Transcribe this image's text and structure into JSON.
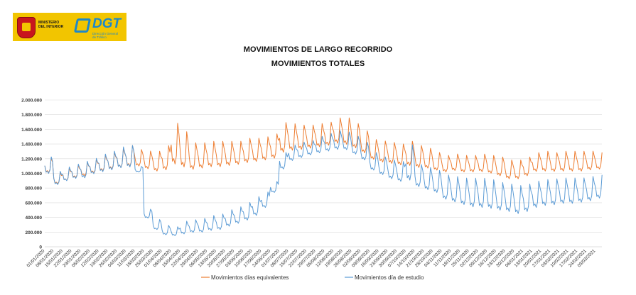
{
  "header": {
    "ministry_text": "MINISTERIO\nDEL INTERIOR",
    "dgt_text": "DGT",
    "dgt_sub": "Dirección General\nde Tráfico"
  },
  "colors": {
    "accent_yellow": "#F2C500",
    "series_equivalentes": "#ED7D31",
    "series_estudio": "#5B9BD5"
  },
  "chart_data": {
    "type": "line",
    "title": "MOVIMIENTOS DE LARGO RECORRIDO",
    "subtitle": "MOVIMIENTOS TOTALES",
    "ylim": [
      0,
      2000000
    ],
    "yticks": [
      0,
      200000,
      400000,
      600000,
      800000,
      1000000,
      1200000,
      1400000,
      1600000,
      1800000,
      2000000
    ],
    "ytick_labels": [
      "0",
      "200.000",
      "400.000",
      "600.000",
      "800.000",
      "1.000.000",
      "1.200.000",
      "1.400.000",
      "1.600.000",
      "1.800.000",
      "2.000.000"
    ],
    "grid": "horizontal",
    "legend": "bottom",
    "x_labels": [
      "01/01/2020",
      "08/01/2020",
      "15/01/2020",
      "22/01/2020",
      "29/01/2020",
      "05/02/2020",
      "12/02/2020",
      "19/02/2020",
      "26/02/2020",
      "04/03/2020",
      "11/03/2020",
      "18/03/2020",
      "25/03/2020",
      "01/04/2020",
      "08/04/2020",
      "15/04/2020",
      "22/04/2020",
      "29/04/2020",
      "06/05/2020",
      "13/05/2020",
      "20/05/2020",
      "27/05/2020",
      "03/06/2020",
      "10/06/2020",
      "17/06/2020",
      "24/06/2020",
      "01/07/2020",
      "08/07/2020",
      "15/07/2020",
      "22/07/2020",
      "29/07/2020",
      "05/08/2020",
      "12/08/2020",
      "19/08/2020",
      "26/08/2020",
      "02/09/2020",
      "09/09/2020",
      "16/09/2020",
      "23/09/2020",
      "30/09/2020",
      "07/10/2020",
      "14/10/2020",
      "21/10/2020",
      "28/10/2020",
      "04/11/2020",
      "11/11/2020",
      "18/11/2020",
      "25/11/2020",
      "02/12/2020",
      "09/12/2020",
      "16/12/2020",
      "23/12/2020",
      "30/12/2020",
      "06/01/2021",
      "13/01/2021",
      "20/01/2021",
      "27/01/2021",
      "03/02/2021",
      "10/02/2021",
      "17/02/2021",
      "24/02/2021",
      "03/03/2021"
    ],
    "series": [
      {
        "name": "Movimientos días equivalentes",
        "color": "#ED7D31",
        "weekly_low": [
          960000,
          820000,
          860000,
          900000,
          920000,
          960000,
          980000,
          1000000,
          1010000,
          1020000,
          1040000,
          1000000,
          960000,
          960000,
          980000,
          960000,
          960000,
          980000,
          1000000,
          1000000,
          1020000,
          1040000,
          1060000,
          1080000,
          1100000,
          1120000,
          1180000,
          1220000,
          1240000,
          1260000,
          1280000,
          1300000,
          1320000,
          1300000,
          1260000,
          1200000,
          1120000,
          1080000,
          1060000,
          1040000,
          1020000,
          1000000,
          1000000,
          980000,
          960000,
          980000,
          960000,
          960000,
          960000,
          940000,
          900000,
          860000,
          860000,
          900000,
          960000,
          960000,
          960000,
          960000,
          960000,
          960000,
          980000,
          1000000
        ],
        "weekly_high": [
          1220000,
          1020000,
          1080000,
          1120000,
          1160000,
          1200000,
          1260000,
          1300000,
          1360000,
          1400000,
          1340000,
          1320000,
          1320000,
          1400000,
          1720000,
          1600000,
          1440000,
          1440000,
          1460000,
          1460000,
          1460000,
          1460000,
          1500000,
          1500000,
          1520000,
          1560000,
          1720000,
          1700000,
          1680000,
          1680000,
          1700000,
          1720000,
          1780000,
          1780000,
          1700000,
          1600000,
          1480000,
          1460000,
          1440000,
          1420000,
          1460000,
          1400000,
          1360000,
          1300000,
          1260000,
          1280000,
          1260000,
          1260000,
          1280000,
          1260000,
          1240000,
          1200000,
          1200000,
          1240000,
          1300000,
          1320000,
          1300000,
          1320000,
          1320000,
          1320000,
          1320000,
          1300000
        ]
      },
      {
        "name": "Movimientos día de estudio",
        "color": "#5B9BD5",
        "weekly_low": [
          940000,
          800000,
          850000,
          880000,
          880000,
          940000,
          960000,
          980000,
          1000000,
          1010000,
          1000000,
          360000,
          200000,
          130000,
          120000,
          130000,
          150000,
          150000,
          170000,
          180000,
          220000,
          260000,
          300000,
          360000,
          480000,
          700000,
          1000000,
          1120000,
          1160000,
          1200000,
          1220000,
          1240000,
          1260000,
          1260000,
          1200000,
          1120000,
          980000,
          920000,
          860000,
          820000,
          780000,
          740000,
          700000,
          660000,
          560000,
          520000,
          480000,
          440000,
          430000,
          420000,
          400000,
          380000,
          350000,
          380000,
          440000,
          470000,
          480000,
          500000,
          500000,
          520000,
          540000,
          580000
        ],
        "weekly_high": [
          1240000,
          1040000,
          1100000,
          1140000,
          1180000,
          1220000,
          1280000,
          1320000,
          1380000,
          1400000,
          1100000,
          520000,
          380000,
          300000,
          280000,
          360000,
          380000,
          400000,
          440000,
          460000,
          520000,
          560000,
          620000,
          700000,
          760000,
          900000,
          1300000,
          1400000,
          1440000,
          1460000,
          1520000,
          1560000,
          1600000,
          1580000,
          1520000,
          1440000,
          1300000,
          1240000,
          1200000,
          1180000,
          1420000,
          1140000,
          1100000,
          1060000,
          1000000,
          980000,
          960000,
          960000,
          960000,
          940000,
          900000,
          880000,
          860000,
          880000,
          920000,
          940000,
          950000,
          960000,
          960000,
          960000,
          980000,
          1000000
        ]
      }
    ]
  }
}
